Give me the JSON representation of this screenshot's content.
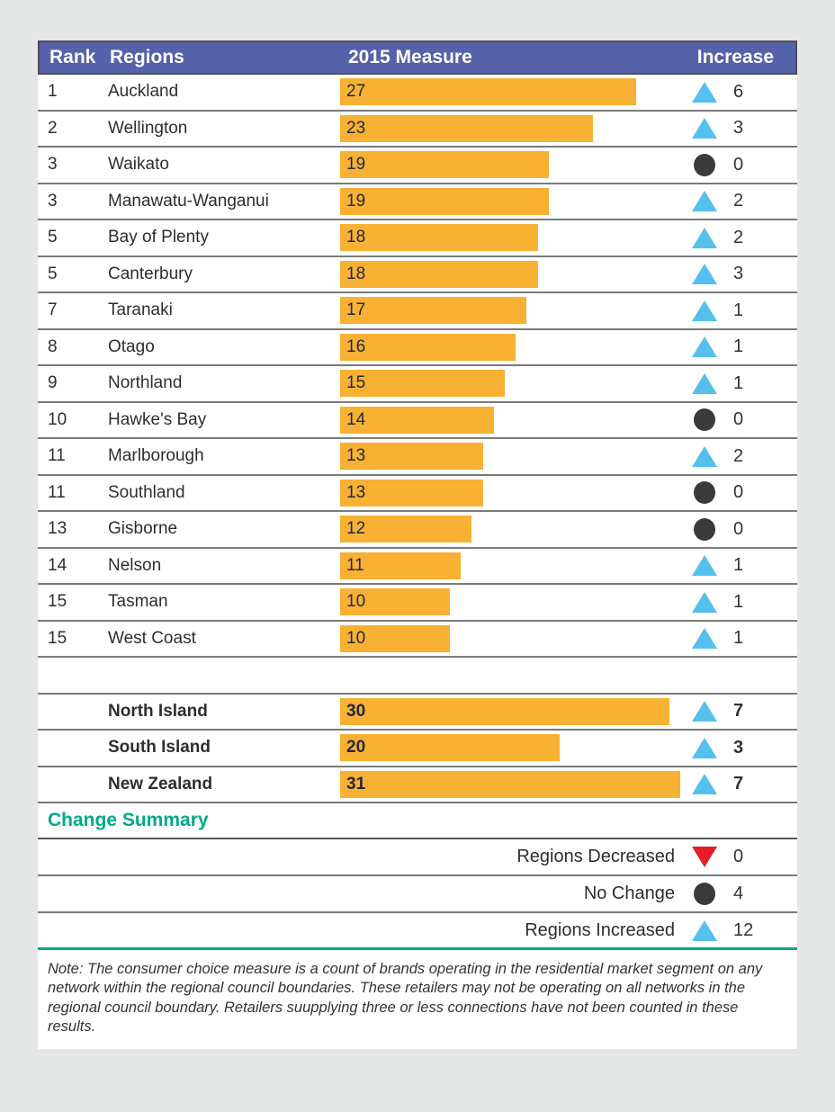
{
  "header": {
    "rank": "Rank",
    "regions": "Regions",
    "measure": "2015 Measure",
    "increase": "Increase"
  },
  "chart_data": {
    "type": "bar",
    "columns": [
      "Rank",
      "Regions",
      "2015 Measure",
      "Increase"
    ],
    "xlim": [
      0,
      31
    ],
    "rows": [
      {
        "rank": "1",
        "region": "Auckland",
        "measure": 27,
        "change": "up",
        "increase": 6
      },
      {
        "rank": "2",
        "region": "Wellington",
        "measure": 23,
        "change": "up",
        "increase": 3
      },
      {
        "rank": "3",
        "region": "Waikato",
        "measure": 19,
        "change": "none",
        "increase": 0
      },
      {
        "rank": "3",
        "region": "Manawatu-Wanganui",
        "measure": 19,
        "change": "up",
        "increase": 2
      },
      {
        "rank": "5",
        "region": "Bay of Plenty",
        "measure": 18,
        "change": "up",
        "increase": 2
      },
      {
        "rank": "5",
        "region": "Canterbury",
        "measure": 18,
        "change": "up",
        "increase": 3
      },
      {
        "rank": "7",
        "region": "Taranaki",
        "measure": 17,
        "change": "up",
        "increase": 1
      },
      {
        "rank": "8",
        "region": "Otago",
        "measure": 16,
        "change": "up",
        "increase": 1
      },
      {
        "rank": "9",
        "region": "Northland",
        "measure": 15,
        "change": "up",
        "increase": 1
      },
      {
        "rank": "10",
        "region": "Hawke's Bay",
        "measure": 14,
        "change": "none",
        "increase": 0
      },
      {
        "rank": "11",
        "region": "Marlborough",
        "measure": 13,
        "change": "up",
        "increase": 2
      },
      {
        "rank": "11",
        "region": "Southland",
        "measure": 13,
        "change": "none",
        "increase": 0
      },
      {
        "rank": "13",
        "region": "Gisborne",
        "measure": 12,
        "change": "none",
        "increase": 0
      },
      {
        "rank": "14",
        "region": "Nelson",
        "measure": 11,
        "change": "up",
        "increase": 1
      },
      {
        "rank": "15",
        "region": "Tasman",
        "measure": 10,
        "change": "up",
        "increase": 1
      },
      {
        "rank": "15",
        "region": "West Coast",
        "measure": 10,
        "change": "up",
        "increase": 1
      }
    ],
    "summary_rows": [
      {
        "region": "North Island",
        "measure": 30,
        "change": "up",
        "increase": 7
      },
      {
        "region": "South Island",
        "measure": 20,
        "change": "up",
        "increase": 3
      },
      {
        "region": "New Zealand",
        "measure": 31,
        "change": "up",
        "increase": 7
      }
    ],
    "change_summary": {
      "heading": "Change Summary",
      "items": [
        {
          "label": "Regions Decreased",
          "icon": "down",
          "value": 0
        },
        {
          "label": "No Change",
          "icon": "none",
          "value": 4
        },
        {
          "label": "Regions Increased",
          "icon": "up",
          "value": 12
        }
      ]
    }
  },
  "note": "Note: The consumer choice measure is a count of brands operating in the residential market segment on any network within the regional council boundaries. These retailers may not be operating on all networks in the regional council boundary. Retailers suupplying three or less connections have not been counted in these results.",
  "colors": {
    "header_bg": "#5561a8",
    "bar": "#f8b133",
    "increase_triangle": "#55c0ed",
    "decrease_triangle": "#e81c26",
    "no_change_circle": "#3a3a3a",
    "teal_accent": "#00a98c",
    "page_bg": "#e5e6e6"
  },
  "icons": {
    "up": "increase-triangle-icon",
    "down": "decrease-triangle-icon",
    "none": "no-change-circle-icon"
  }
}
